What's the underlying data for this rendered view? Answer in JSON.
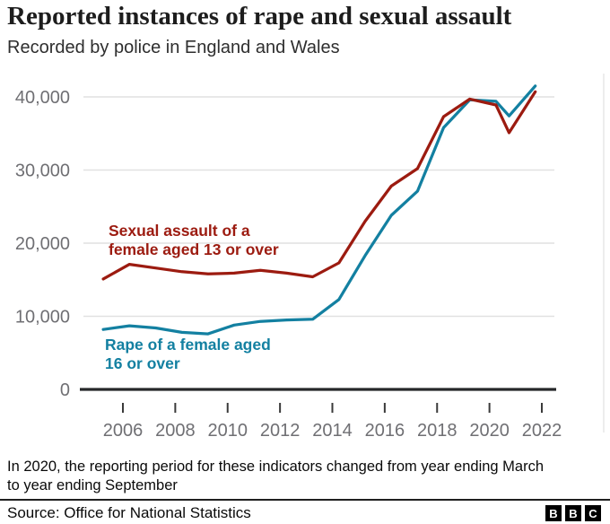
{
  "chart_data": {
    "type": "line",
    "title": "Reported instances of rape and sexual assault",
    "subtitle": "Recorded by police in England and Wales",
    "xlabel": "",
    "ylabel": "",
    "ylim": [
      0,
      42000
    ],
    "grid": "horizontal",
    "legend_position": "inline-labels",
    "y_ticks": [
      0,
      10000,
      20000,
      30000,
      40000
    ],
    "x_ticks": [
      2006,
      2008,
      2010,
      2012,
      2014,
      2016,
      2018,
      2020,
      2022
    ],
    "series": [
      {
        "name": "Rape of a female aged 16 or over",
        "label_lines": [
          "Rape of a female aged",
          "16 or over"
        ],
        "color": "#1380a1",
        "points": [
          [
            2005.25,
            8200
          ],
          [
            2006.25,
            8700
          ],
          [
            2007.25,
            8400
          ],
          [
            2008.25,
            7800
          ],
          [
            2009.25,
            7600
          ],
          [
            2010.25,
            8800
          ],
          [
            2011.25,
            9300
          ],
          [
            2012.25,
            9500
          ],
          [
            2013.25,
            9600
          ],
          [
            2014.25,
            12300
          ],
          [
            2015.25,
            18300
          ],
          [
            2016.25,
            23800
          ],
          [
            2017.25,
            27100
          ],
          [
            2018.25,
            35800
          ],
          [
            2019.25,
            39600
          ],
          [
            2020.25,
            39400
          ],
          [
            2020.75,
            37400
          ],
          [
            2021.75,
            41500
          ]
        ]
      },
      {
        "name": "Sexual assault of a female aged 13 or over",
        "label_lines": [
          "Sexual assault of a",
          "female aged 13 or over"
        ],
        "color": "#9c1b10",
        "points": [
          [
            2005.25,
            15100
          ],
          [
            2006.25,
            17100
          ],
          [
            2007.25,
            16600
          ],
          [
            2008.25,
            16100
          ],
          [
            2009.25,
            15800
          ],
          [
            2010.25,
            15900
          ],
          [
            2011.25,
            16300
          ],
          [
            2012.25,
            15900
          ],
          [
            2013.25,
            15400
          ],
          [
            2014.25,
            17300
          ],
          [
            2015.25,
            23000
          ],
          [
            2016.25,
            27800
          ],
          [
            2017.25,
            30200
          ],
          [
            2018.25,
            37300
          ],
          [
            2019.25,
            39700
          ],
          [
            2020.25,
            38900
          ],
          [
            2020.75,
            35100
          ],
          [
            2021.75,
            40700
          ]
        ]
      }
    ],
    "colors": {
      "grid": "#e1e1e1",
      "axis": "#26282a",
      "tick_label": "#6f6f73"
    }
  },
  "footnote": {
    "text": "In 2020, the reporting period for these indicators changed from year ending March to year ending September"
  },
  "source": {
    "text": "Source: Office for National Statistics"
  },
  "logo": {
    "letters": [
      "B",
      "B",
      "C"
    ]
  }
}
